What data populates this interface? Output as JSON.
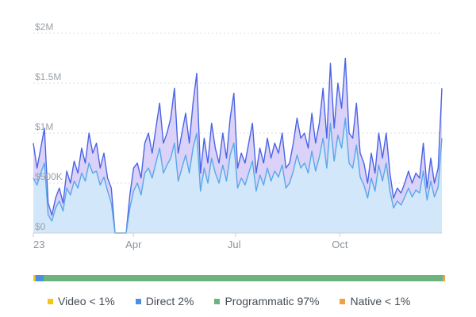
{
  "chart_data": {
    "type": "area",
    "title": "",
    "xlabel": "",
    "ylabel": "",
    "ylim": [
      0,
      2000000
    ],
    "y_ticks": [
      {
        "value": 0,
        "label": "$0"
      },
      {
        "value": 500000,
        "label": "$500K"
      },
      {
        "value": 1000000,
        "label": "$1M"
      },
      {
        "value": 1500000,
        "label": "$1.5M"
      },
      {
        "value": 2000000,
        "label": "$2M"
      }
    ],
    "x_ticks": [
      {
        "position": 0.0,
        "label": "23"
      },
      {
        "position": 0.245,
        "label": "Apr"
      },
      {
        "position": 0.495,
        "label": "Jul"
      },
      {
        "position": 0.75,
        "label": "Oct"
      }
    ],
    "grid": true,
    "series": [
      {
        "color": "#4a64e6",
        "fill": "#d6cdf7",
        "values": [
          900000,
          650000,
          850000,
          1050000,
          300000,
          180000,
          350000,
          450000,
          300000,
          620000,
          500000,
          720000,
          600000,
          850000,
          700000,
          1000000,
          800000,
          900000,
          650000,
          800000,
          550000,
          450000,
          0,
          0,
          0,
          0,
          380000,
          650000,
          700000,
          550000,
          900000,
          1000000,
          800000,
          1050000,
          1300000,
          900000,
          1000000,
          1150000,
          1450000,
          800000,
          1000000,
          1200000,
          900000,
          1300000,
          1600000,
          600000,
          950000,
          700000,
          1100000,
          850000,
          700000,
          1000000,
          750000,
          1150000,
          1400000,
          650000,
          800000,
          700000,
          900000,
          1100000,
          600000,
          850000,
          700000,
          950000,
          750000,
          900000,
          800000,
          1000000,
          650000,
          700000,
          900000,
          1150000,
          950000,
          1000000,
          850000,
          1200000,
          900000,
          1100000,
          1450000,
          950000,
          1700000,
          1050000,
          1500000,
          1250000,
          1750000,
          1000000,
          950000,
          1300000,
          800000,
          700000,
          500000,
          800000,
          600000,
          1000000,
          750000,
          1000000,
          600000,
          350000,
          450000,
          400000,
          500000,
          620000,
          500000,
          600000,
          550000,
          900000,
          450000,
          750000,
          500000,
          650000,
          1450000
        ]
      },
      {
        "color": "#5aa8e8",
        "fill": "#d3e8fa",
        "values": [
          550000,
          480000,
          600000,
          700000,
          180000,
          120000,
          250000,
          320000,
          220000,
          450000,
          380000,
          520000,
          450000,
          600000,
          520000,
          700000,
          600000,
          620000,
          480000,
          560000,
          420000,
          300000,
          0,
          0,
          0,
          0,
          250000,
          420000,
          500000,
          380000,
          600000,
          650000,
          550000,
          700000,
          850000,
          600000,
          680000,
          750000,
          900000,
          520000,
          650000,
          780000,
          600000,
          850000,
          1000000,
          420000,
          650000,
          500000,
          750000,
          600000,
          500000,
          680000,
          520000,
          780000,
          900000,
          450000,
          550000,
          480000,
          600000,
          720000,
          420000,
          580000,
          480000,
          650000,
          520000,
          620000,
          560000,
          680000,
          450000,
          500000,
          620000,
          780000,
          650000,
          700000,
          600000,
          820000,
          620000,
          760000,
          950000,
          650000,
          1100000,
          720000,
          980000,
          850000,
          1150000,
          700000,
          650000,
          880000,
          560000,
          480000,
          350000,
          550000,
          420000,
          680000,
          520000,
          700000,
          420000,
          250000,
          320000,
          280000,
          360000,
          450000,
          360000,
          430000,
          400000,
          620000,
          330000,
          520000,
          360000,
          460000,
          950000
        ]
      }
    ],
    "share_bar": [
      {
        "label": "Video < 1%",
        "value": 0.5,
        "color": "#f5c518"
      },
      {
        "label": "Direct 2%",
        "value": 2,
        "color": "#4a90e2"
      },
      {
        "label": "Programmatic 97%",
        "value": 97,
        "color": "#6db37e"
      },
      {
        "label": "Native < 1%",
        "value": 0.5,
        "color": "#f0a040"
      }
    ]
  }
}
